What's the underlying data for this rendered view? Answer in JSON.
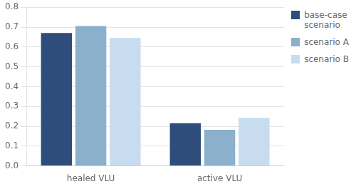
{
  "chart_data": {
    "type": "bar",
    "categories": [
      "healed VLU",
      "active VLU"
    ],
    "series": [
      {
        "name": "base-case\nscenario",
        "color": "#2E4D7B",
        "values": [
          0.67,
          0.215
        ]
      },
      {
        "name": "scenario A",
        "color": "#8BB0CC",
        "values": [
          0.705,
          0.182
        ]
      },
      {
        "name": "scenario B",
        "color": "#C8DCF0",
        "values": [
          0.645,
          0.242
        ]
      }
    ],
    "ylim": [
      0,
      0.8
    ],
    "yticks": [
      {
        "value": 0,
        "label": "0.0"
      },
      0.1,
      0.2,
      0.3,
      0.4,
      0.5,
      0.6,
      0.7,
      0.8
    ],
    "grid": true,
    "legend": "right"
  }
}
